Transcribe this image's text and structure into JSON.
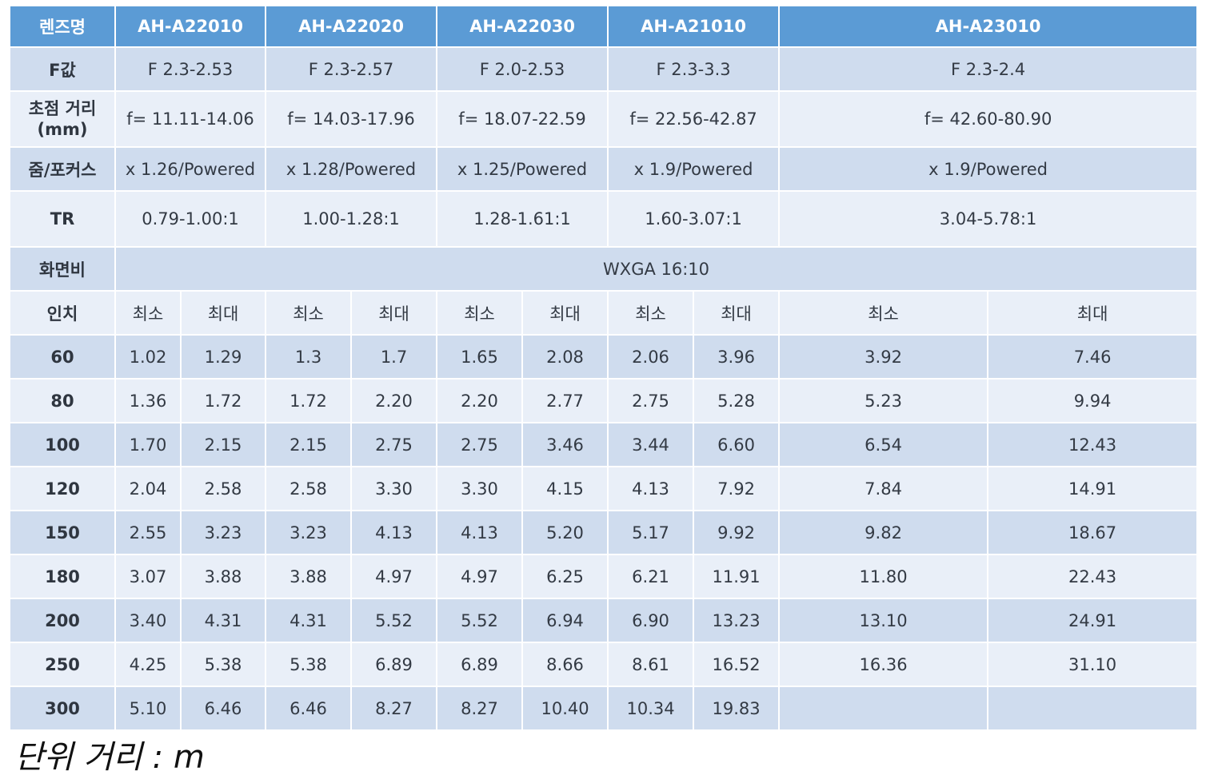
{
  "header": {
    "label": "렌즈명",
    "models": [
      "AH-A22010",
      "AH-A22020",
      "AH-A22030",
      "AH-A21010",
      "AH-A23010"
    ]
  },
  "specs": [
    {
      "label": "F값",
      "values": [
        "F 2.3-2.53",
        "F 2.3-2.57",
        "F 2.0-2.53",
        "F 2.3-3.3",
        "F 2.3-2.4"
      ]
    },
    {
      "label_line1": "초점 거리",
      "label_line2": "(mm)",
      "values": [
        "f= 11.11-14.06",
        "f= 14.03-17.96",
        "f= 18.07-22.59",
        "f= 22.56-42.87",
        "f= 42.60-80.90"
      ]
    },
    {
      "label": "줌/포커스",
      "values": [
        "x 1.26/Powered",
        "x 1.28/Powered",
        "x 1.25/Powered",
        "x 1.9/Powered",
        "x 1.9/Powered"
      ]
    },
    {
      "label": "TR",
      "values": [
        "0.79-1.00:1",
        "1.00-1.28:1",
        "1.28-1.61:1",
        "1.60-3.07:1",
        "3.04-5.78:1"
      ]
    }
  ],
  "aspect": {
    "label": "화면비",
    "value": "WXGA 16:10"
  },
  "size_header": {
    "label": "인치",
    "min": "최소",
    "max": "최대"
  },
  "rows": [
    {
      "inch": "60",
      "values": [
        "1.02",
        "1.29",
        "1.3",
        "1.7",
        "1.65",
        "2.08",
        "2.06",
        "3.96",
        "3.92",
        "7.46"
      ]
    },
    {
      "inch": "80",
      "values": [
        "1.36",
        "1.72",
        "1.72",
        "2.20",
        "2.20",
        "2.77",
        "2.75",
        "5.28",
        "5.23",
        "9.94"
      ]
    },
    {
      "inch": "100",
      "values": [
        "1.70",
        "2.15",
        "2.15",
        "2.75",
        "2.75",
        "3.46",
        "3.44",
        "6.60",
        "6.54",
        "12.43"
      ]
    },
    {
      "inch": "120",
      "values": [
        "2.04",
        "2.58",
        "2.58",
        "3.30",
        "3.30",
        "4.15",
        "4.13",
        "7.92",
        "7.84",
        "14.91"
      ]
    },
    {
      "inch": "150",
      "values": [
        "2.55",
        "3.23",
        "3.23",
        "4.13",
        "4.13",
        "5.20",
        "5.17",
        "9.92",
        "9.82",
        "18.67"
      ]
    },
    {
      "inch": "180",
      "values": [
        "3.07",
        "3.88",
        "3.88",
        "4.97",
        "4.97",
        "6.25",
        "6.21",
        "11.91",
        "11.80",
        "22.43"
      ]
    },
    {
      "inch": "200",
      "values": [
        "3.40",
        "4.31",
        "4.31",
        "5.52",
        "5.52",
        "6.94",
        "6.90",
        "13.23",
        "13.10",
        "24.91"
      ]
    },
    {
      "inch": "250",
      "values": [
        "4.25",
        "5.38",
        "5.38",
        "6.89",
        "6.89",
        "8.66",
        "8.61",
        "16.52",
        "16.36",
        "31.10"
      ]
    },
    {
      "inch": "300",
      "values": [
        "5.10",
        "6.46",
        "6.46",
        "8.27",
        "8.27",
        "10.40",
        "10.34",
        "19.83",
        "",
        ""
      ]
    }
  ],
  "footnote": "단위 거리 : m",
  "colors": {
    "header": "#5b9bd5",
    "row_dark": "#cfdcee",
    "row_light": "#e9eff8"
  }
}
